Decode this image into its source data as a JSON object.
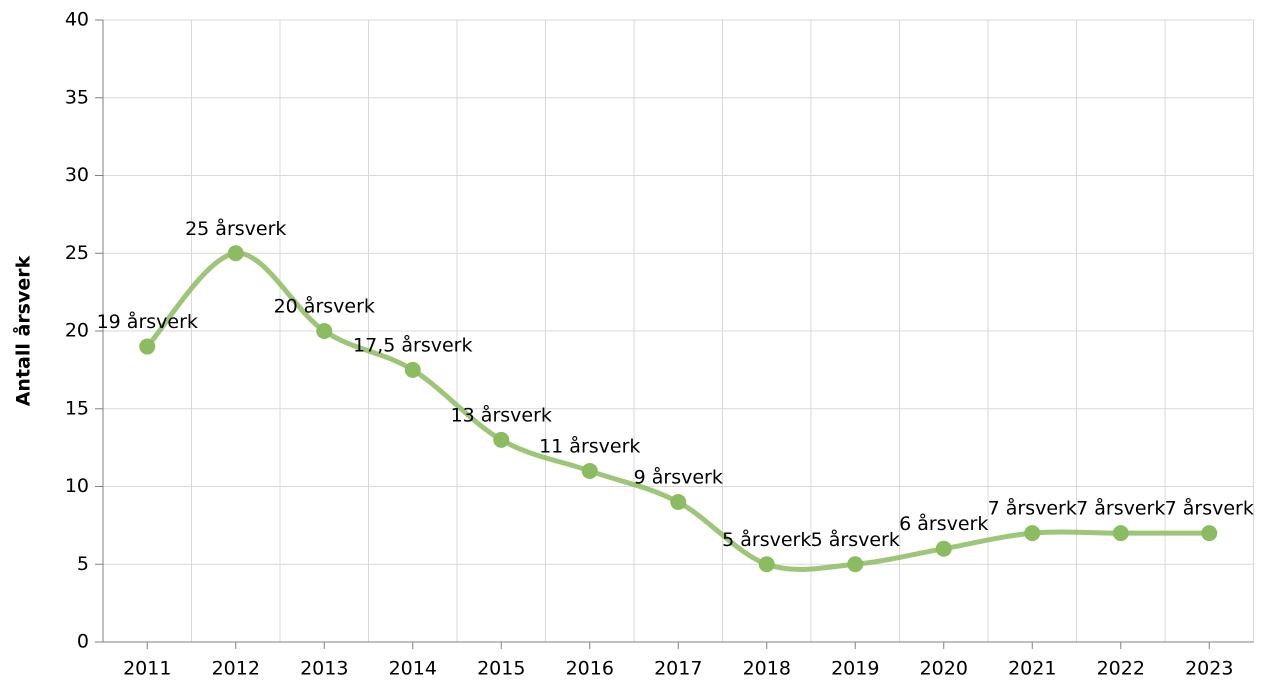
{
  "chart_data": {
    "type": "line",
    "y_label": "Antall årsverk",
    "categories": [
      "2011",
      "2012",
      "2013",
      "2014",
      "2015",
      "2016",
      "2017",
      "2018",
      "2019",
      "2020",
      "2021",
      "2022",
      "2023"
    ],
    "series": [
      {
        "name": "Antall årsverk",
        "color": "#8cbc62",
        "values": [
          19,
          25,
          20,
          17.5,
          13,
          11,
          9,
          5,
          5,
          6,
          7,
          7,
          7
        ],
        "value_labels": [
          "19 årsverk",
          "25 årsverk",
          "20 årsverk",
          "17,5 årsverk",
          "13 årsverk",
          "11 årsverk",
          "9 årsverk",
          "5 årsverk",
          "5 årsverk",
          "6 årsverk",
          "7 årsverk",
          "7 årsverk",
          "7 årsverk"
        ]
      }
    ],
    "ylim": [
      0,
      40
    ],
    "yticks": [
      0,
      5,
      10,
      15,
      20,
      25,
      30,
      35,
      40
    ],
    "grid": true,
    "smooth": true
  }
}
